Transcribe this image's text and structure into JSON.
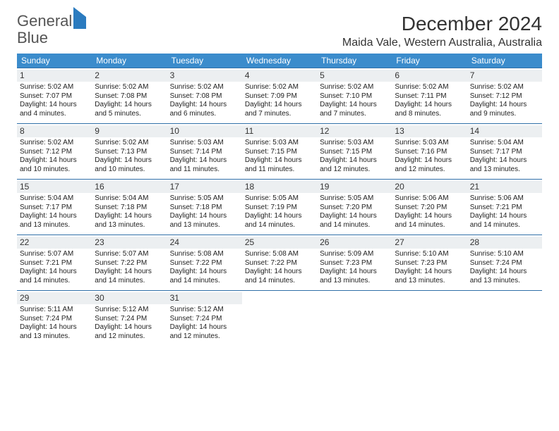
{
  "logo": {
    "text1": "General",
    "text2": "Blue"
  },
  "title": "December 2024",
  "location": "Maida Vale, Western Australia, Australia",
  "colors": {
    "header_bg": "#3b8ccc",
    "divider": "#2f6fa8",
    "daynum_bg": "#eceff1",
    "logo_gray": "#777777",
    "logo_blue": "#2b7bbf",
    "text": "#222222",
    "background": "#ffffff"
  },
  "weekdays": [
    "Sunday",
    "Monday",
    "Tuesday",
    "Wednesday",
    "Thursday",
    "Friday",
    "Saturday"
  ],
  "calendar": {
    "type": "table",
    "fontsize_day": 10,
    "fontsize_daynum": 12,
    "weeks": [
      [
        {
          "n": "1",
          "sr": "5:02 AM",
          "ss": "7:07 PM",
          "dl1": "14 hours",
          "dl2": "and 4 minutes."
        },
        {
          "n": "2",
          "sr": "5:02 AM",
          "ss": "7:08 PM",
          "dl1": "14 hours",
          "dl2": "and 5 minutes."
        },
        {
          "n": "3",
          "sr": "5:02 AM",
          "ss": "7:08 PM",
          "dl1": "14 hours",
          "dl2": "and 6 minutes."
        },
        {
          "n": "4",
          "sr": "5:02 AM",
          "ss": "7:09 PM",
          "dl1": "14 hours",
          "dl2": "and 7 minutes."
        },
        {
          "n": "5",
          "sr": "5:02 AM",
          "ss": "7:10 PM",
          "dl1": "14 hours",
          "dl2": "and 7 minutes."
        },
        {
          "n": "6",
          "sr": "5:02 AM",
          "ss": "7:11 PM",
          "dl1": "14 hours",
          "dl2": "and 8 minutes."
        },
        {
          "n": "7",
          "sr": "5:02 AM",
          "ss": "7:12 PM",
          "dl1": "14 hours",
          "dl2": "and 9 minutes."
        }
      ],
      [
        {
          "n": "8",
          "sr": "5:02 AM",
          "ss": "7:12 PM",
          "dl1": "14 hours",
          "dl2": "and 10 minutes."
        },
        {
          "n": "9",
          "sr": "5:02 AM",
          "ss": "7:13 PM",
          "dl1": "14 hours",
          "dl2": "and 10 minutes."
        },
        {
          "n": "10",
          "sr": "5:03 AM",
          "ss": "7:14 PM",
          "dl1": "14 hours",
          "dl2": "and 11 minutes."
        },
        {
          "n": "11",
          "sr": "5:03 AM",
          "ss": "7:15 PM",
          "dl1": "14 hours",
          "dl2": "and 11 minutes."
        },
        {
          "n": "12",
          "sr": "5:03 AM",
          "ss": "7:15 PM",
          "dl1": "14 hours",
          "dl2": "and 12 minutes."
        },
        {
          "n": "13",
          "sr": "5:03 AM",
          "ss": "7:16 PM",
          "dl1": "14 hours",
          "dl2": "and 12 minutes."
        },
        {
          "n": "14",
          "sr": "5:04 AM",
          "ss": "7:17 PM",
          "dl1": "14 hours",
          "dl2": "and 13 minutes."
        }
      ],
      [
        {
          "n": "15",
          "sr": "5:04 AM",
          "ss": "7:17 PM",
          "dl1": "14 hours",
          "dl2": "and 13 minutes."
        },
        {
          "n": "16",
          "sr": "5:04 AM",
          "ss": "7:18 PM",
          "dl1": "14 hours",
          "dl2": "and 13 minutes."
        },
        {
          "n": "17",
          "sr": "5:05 AM",
          "ss": "7:18 PM",
          "dl1": "14 hours",
          "dl2": "and 13 minutes."
        },
        {
          "n": "18",
          "sr": "5:05 AM",
          "ss": "7:19 PM",
          "dl1": "14 hours",
          "dl2": "and 14 minutes."
        },
        {
          "n": "19",
          "sr": "5:05 AM",
          "ss": "7:20 PM",
          "dl1": "14 hours",
          "dl2": "and 14 minutes."
        },
        {
          "n": "20",
          "sr": "5:06 AM",
          "ss": "7:20 PM",
          "dl1": "14 hours",
          "dl2": "and 14 minutes."
        },
        {
          "n": "21",
          "sr": "5:06 AM",
          "ss": "7:21 PM",
          "dl1": "14 hours",
          "dl2": "and 14 minutes."
        }
      ],
      [
        {
          "n": "22",
          "sr": "5:07 AM",
          "ss": "7:21 PM",
          "dl1": "14 hours",
          "dl2": "and 14 minutes."
        },
        {
          "n": "23",
          "sr": "5:07 AM",
          "ss": "7:22 PM",
          "dl1": "14 hours",
          "dl2": "and 14 minutes."
        },
        {
          "n": "24",
          "sr": "5:08 AM",
          "ss": "7:22 PM",
          "dl1": "14 hours",
          "dl2": "and 14 minutes."
        },
        {
          "n": "25",
          "sr": "5:08 AM",
          "ss": "7:22 PM",
          "dl1": "14 hours",
          "dl2": "and 14 minutes."
        },
        {
          "n": "26",
          "sr": "5:09 AM",
          "ss": "7:23 PM",
          "dl1": "14 hours",
          "dl2": "and 13 minutes."
        },
        {
          "n": "27",
          "sr": "5:10 AM",
          "ss": "7:23 PM",
          "dl1": "14 hours",
          "dl2": "and 13 minutes."
        },
        {
          "n": "28",
          "sr": "5:10 AM",
          "ss": "7:24 PM",
          "dl1": "14 hours",
          "dl2": "and 13 minutes."
        }
      ],
      [
        {
          "n": "29",
          "sr": "5:11 AM",
          "ss": "7:24 PM",
          "dl1": "14 hours",
          "dl2": "and 13 minutes."
        },
        {
          "n": "30",
          "sr": "5:12 AM",
          "ss": "7:24 PM",
          "dl1": "14 hours",
          "dl2": "and 12 minutes."
        },
        {
          "n": "31",
          "sr": "5:12 AM",
          "ss": "7:24 PM",
          "dl1": "14 hours",
          "dl2": "and 12 minutes."
        },
        {
          "empty": true
        },
        {
          "empty": true
        },
        {
          "empty": true
        },
        {
          "empty": true
        }
      ]
    ]
  },
  "labels": {
    "sunrise_prefix": "Sunrise: ",
    "sunset_prefix": "Sunset: ",
    "daylight_prefix": "Daylight: "
  }
}
